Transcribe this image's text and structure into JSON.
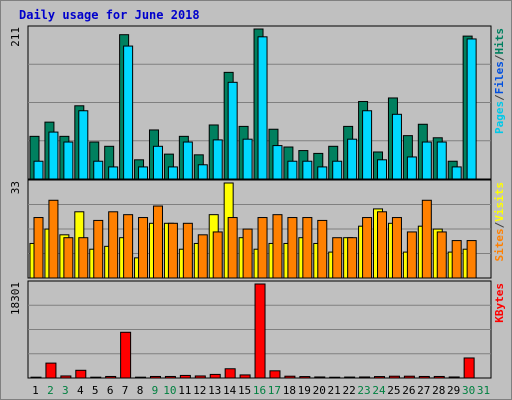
{
  "chart_data": [
    {
      "type": "bar",
      "title": "Daily usage for June 2018",
      "ytick": "211",
      "series_labels": [
        {
          "text": "Pages",
          "color": "#00c8e8"
        },
        {
          "text": "/",
          "color": "#404040"
        },
        {
          "text": "Files",
          "color": "#0050e0"
        },
        {
          "text": "/",
          "color": "#404040"
        },
        {
          "text": "Hits",
          "color": "#008060"
        }
      ],
      "series": [
        {
          "name": "Hits",
          "color": "#00805f",
          "values": [
            60,
            80,
            60,
            103,
            52,
            46,
            203,
            27,
            69,
            35,
            60,
            34,
            76,
            150,
            74,
            211,
            70,
            45,
            40,
            36,
            46,
            74,
            109,
            38,
            114,
            61,
            77,
            58,
            25,
            201
          ]
        },
        {
          "name": "Files",
          "color": "#00d8ff",
          "values": [
            25,
            66,
            52,
            96,
            25,
            17,
            187,
            17,
            46,
            17,
            52,
            20,
            55,
            136,
            56,
            200,
            47,
            25,
            25,
            17,
            25,
            56,
            96,
            27,
            91,
            31,
            52,
            52,
            17,
            197
          ]
        }
      ],
      "ylim": [
        0,
        211
      ]
    },
    {
      "type": "bar",
      "ytick": "33",
      "series_labels": [
        {
          "text": "Sites",
          "color": "#ff8000"
        },
        {
          "text": "/",
          "color": "#404040"
        },
        {
          "text": "Visits",
          "color": "#ffff00"
        }
      ],
      "series": [
        {
          "name": "Visits",
          "color": "#ffff00",
          "values": [
            12,
            17,
            15,
            23,
            10,
            11,
            14,
            7,
            19,
            19,
            10,
            12,
            22,
            33,
            14,
            10,
            12,
            12,
            14,
            12,
            9,
            14,
            18,
            24,
            19,
            9,
            18,
            17,
            9,
            10
          ]
        },
        {
          "name": "Sites",
          "color": "#ff8000",
          "values": [
            21,
            27,
            14,
            14,
            20,
            23,
            22,
            21,
            25,
            19,
            19,
            15,
            16,
            21,
            17,
            21,
            22,
            21,
            21,
            20,
            14,
            14,
            21,
            23,
            21,
            16,
            27,
            16,
            13,
            13
          ]
        }
      ],
      "ylim": [
        0,
        33
      ]
    },
    {
      "type": "bar",
      "ytick": "18301",
      "series_labels": [
        {
          "text": "KBytes",
          "color": "#ff0000"
        }
      ],
      "series": [
        {
          "name": "KBytes",
          "color": "#ff0000",
          "values": [
            160,
            2900,
            400,
            1500,
            160,
            300,
            8900,
            160,
            300,
            300,
            500,
            400,
            700,
            1800,
            600,
            18301,
            1400,
            350,
            280,
            200,
            150,
            180,
            200,
            280,
            350,
            350,
            300,
            300,
            200,
            3900
          ]
        }
      ],
      "ylim": [
        0,
        18301
      ]
    }
  ],
  "x_labels": [
    "1",
    "2",
    "3",
    "4",
    "5",
    "6",
    "7",
    "8",
    "9",
    "10",
    "11",
    "12",
    "13",
    "14",
    "15",
    "16",
    "17",
    "18",
    "19",
    "20",
    "21",
    "22",
    "23",
    "24",
    "25",
    "26",
    "27",
    "28",
    "29",
    "30",
    "31"
  ],
  "weekend_days": [
    2,
    3,
    9,
    10,
    16,
    17,
    23,
    24,
    30,
    31
  ],
  "colors": {
    "weekday_label": "#000000",
    "weekend_label": "#008040",
    "grid": "#808080",
    "panel_border": "#000000",
    "bar_outline": "#000000"
  }
}
